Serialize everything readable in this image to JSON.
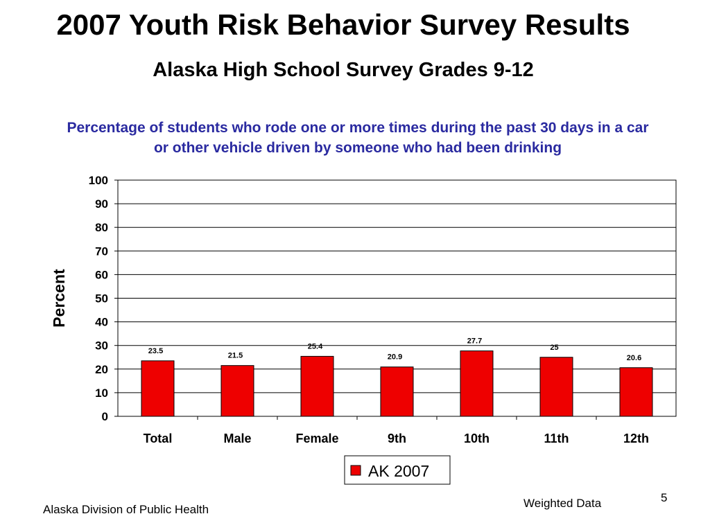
{
  "slide": {
    "title": "2007 Youth Risk Behavior Survey Results",
    "subtitle": "Alaska High School Survey Grades 9-12",
    "source": "Alaska Division of Public Health",
    "note": "Weighted Data",
    "page_number": "5"
  },
  "chart_data": {
    "type": "bar",
    "title": "Percentage of students who rode one or more times during the past 30 days in a car or other vehicle driven by someone who had been drinking",
    "xlabel": "",
    "ylabel": "Percent",
    "categories": [
      "Total",
      "Male",
      "Female",
      "9th",
      "10th",
      "11th",
      "12th"
    ],
    "series": [
      {
        "name": "AK 2007",
        "values": [
          23.5,
          21.5,
          25.4,
          20.9,
          27.7,
          25,
          20.6
        ],
        "color": "#ee0000"
      }
    ],
    "data_labels": [
      "23.5",
      "21.5",
      "25.4",
      "20.9",
      "27.7",
      "25",
      "20.6"
    ],
    "ylim": [
      0,
      100
    ],
    "yticks": [
      0,
      10,
      20,
      30,
      40,
      50,
      60,
      70,
      80,
      90,
      100
    ],
    "grid": true,
    "legend_position": "bottom"
  }
}
